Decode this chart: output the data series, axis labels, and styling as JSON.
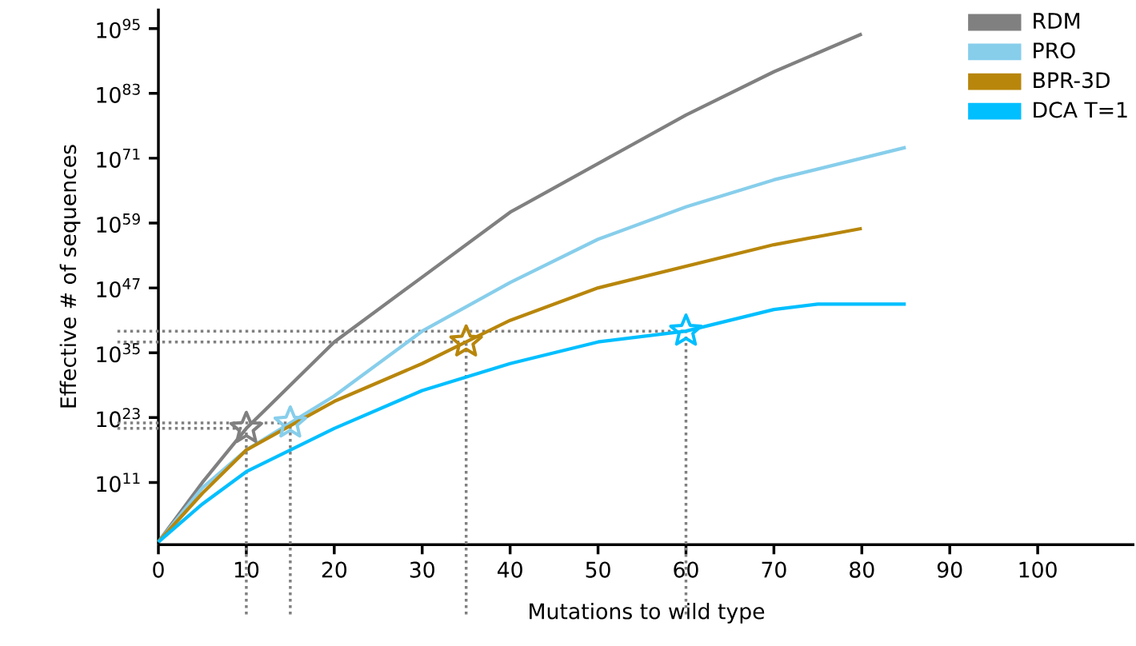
{
  "chart_data": {
    "type": "line",
    "xlabel": "Mutations to wild type",
    "ylabel": "Effective # of sequences",
    "log": "y",
    "xlim": [
      0,
      111
    ],
    "ylim": [
      0.3,
      5e+98
    ],
    "xticks": [
      0,
      10,
      20,
      30,
      40,
      50,
      60,
      70,
      80,
      90,
      100
    ],
    "yticks": [
      {
        "value": 100000000000.0,
        "label": "10$^{11}$"
      },
      {
        "value": 1e+23,
        "label": "10$^{23}$"
      },
      {
        "value": 1e+35,
        "label": "10$^{35}$"
      },
      {
        "value": 1e+47,
        "label": "10$^{47}$"
      },
      {
        "value": 1e+59,
        "label": "10$^{59}$"
      },
      {
        "value": 1e+71,
        "label": "10$^{71}$"
      },
      {
        "value": 1e+83,
        "label": "10$^{83}$"
      },
      {
        "value": 1e+95,
        "label": "10$^{95}$"
      }
    ],
    "grid": false,
    "legend": "top right",
    "marker": "none",
    "line_style": "solid",
    "series": [
      {
        "name": "RDM",
        "color": "#808080",
        "x": [
          0,
          5,
          10,
          20,
          30,
          40,
          50,
          60,
          70,
          80
        ],
        "values": [
          1,
          100000000000.0,
          1e+21,
          1e+37,
          1e+49,
          1e+61,
          1e+70,
          1e+79,
          1e+87,
          1e+94
        ]
      },
      {
        "name": "PRO",
        "color": "#87ceeb",
        "x": [
          0,
          5,
          10,
          15,
          20,
          30,
          40,
          50,
          60,
          70,
          80,
          85
        ],
        "values": [
          1,
          10000000000.0,
          1e+17,
          1e+22,
          1e+27,
          1e+39,
          1e+48,
          1e+56,
          1e+62,
          1e+67,
          1e+71,
          1e+73
        ]
      },
      {
        "name": "BPR-3D",
        "color": "#b8860b",
        "x": [
          0,
          5,
          10,
          20,
          30,
          35,
          40,
          50,
          60,
          70,
          80
        ],
        "values": [
          1,
          1000000000.0,
          1e+17,
          1e+26,
          1e+33,
          1e+37,
          1e+41,
          1e+47,
          1e+51,
          1e+55,
          1e+58
        ]
      },
      {
        "name": "DCA T=1",
        "color": "#00bfff",
        "x": [
          0,
          5,
          10,
          15,
          20,
          30,
          40,
          50,
          60,
          70,
          75,
          80,
          85
        ],
        "values": [
          1,
          10000000.0,
          10000000000000.0,
          1e+17,
          1e+21,
          1e+28,
          1e+33,
          1e+37,
          1e+39,
          1e+43,
          1e+44,
          1e+44,
          1e+44
        ]
      },
      {
        "type": "scatter",
        "marker": "star",
        "x": [
          10,
          15,
          35,
          60
        ],
        "values": [
          1e+21,
          1e+22,
          1e+37,
          1e+39
        ],
        "colors": [
          "#808080",
          "#87ceeb",
          "#b8860b",
          "#00bfff"
        ]
      }
    ],
    "ref_lines": [
      {
        "axis": "x",
        "value": 10,
        "color": "#808080",
        "line_style": "dotted"
      },
      {
        "axis": "x",
        "value": 15,
        "color": "#808080",
        "line_style": "dotted"
      },
      {
        "axis": "x",
        "value": 35,
        "color": "#808080",
        "line_style": "dotted"
      },
      {
        "axis": "x",
        "value": 60,
        "color": "#808080",
        "line_style": "dotted"
      },
      {
        "axis": "y",
        "value": 1e+21,
        "color": "#808080",
        "line_style": "dotted"
      },
      {
        "axis": "y",
        "value": 1e+22,
        "color": "#808080",
        "line_style": "dotted"
      },
      {
        "axis": "y",
        "value": 1e+37,
        "color": "#808080",
        "line_style": "dotted"
      },
      {
        "axis": "y",
        "value": 1e+39,
        "color": "#808080",
        "line_style": "dotted"
      }
    ]
  }
}
